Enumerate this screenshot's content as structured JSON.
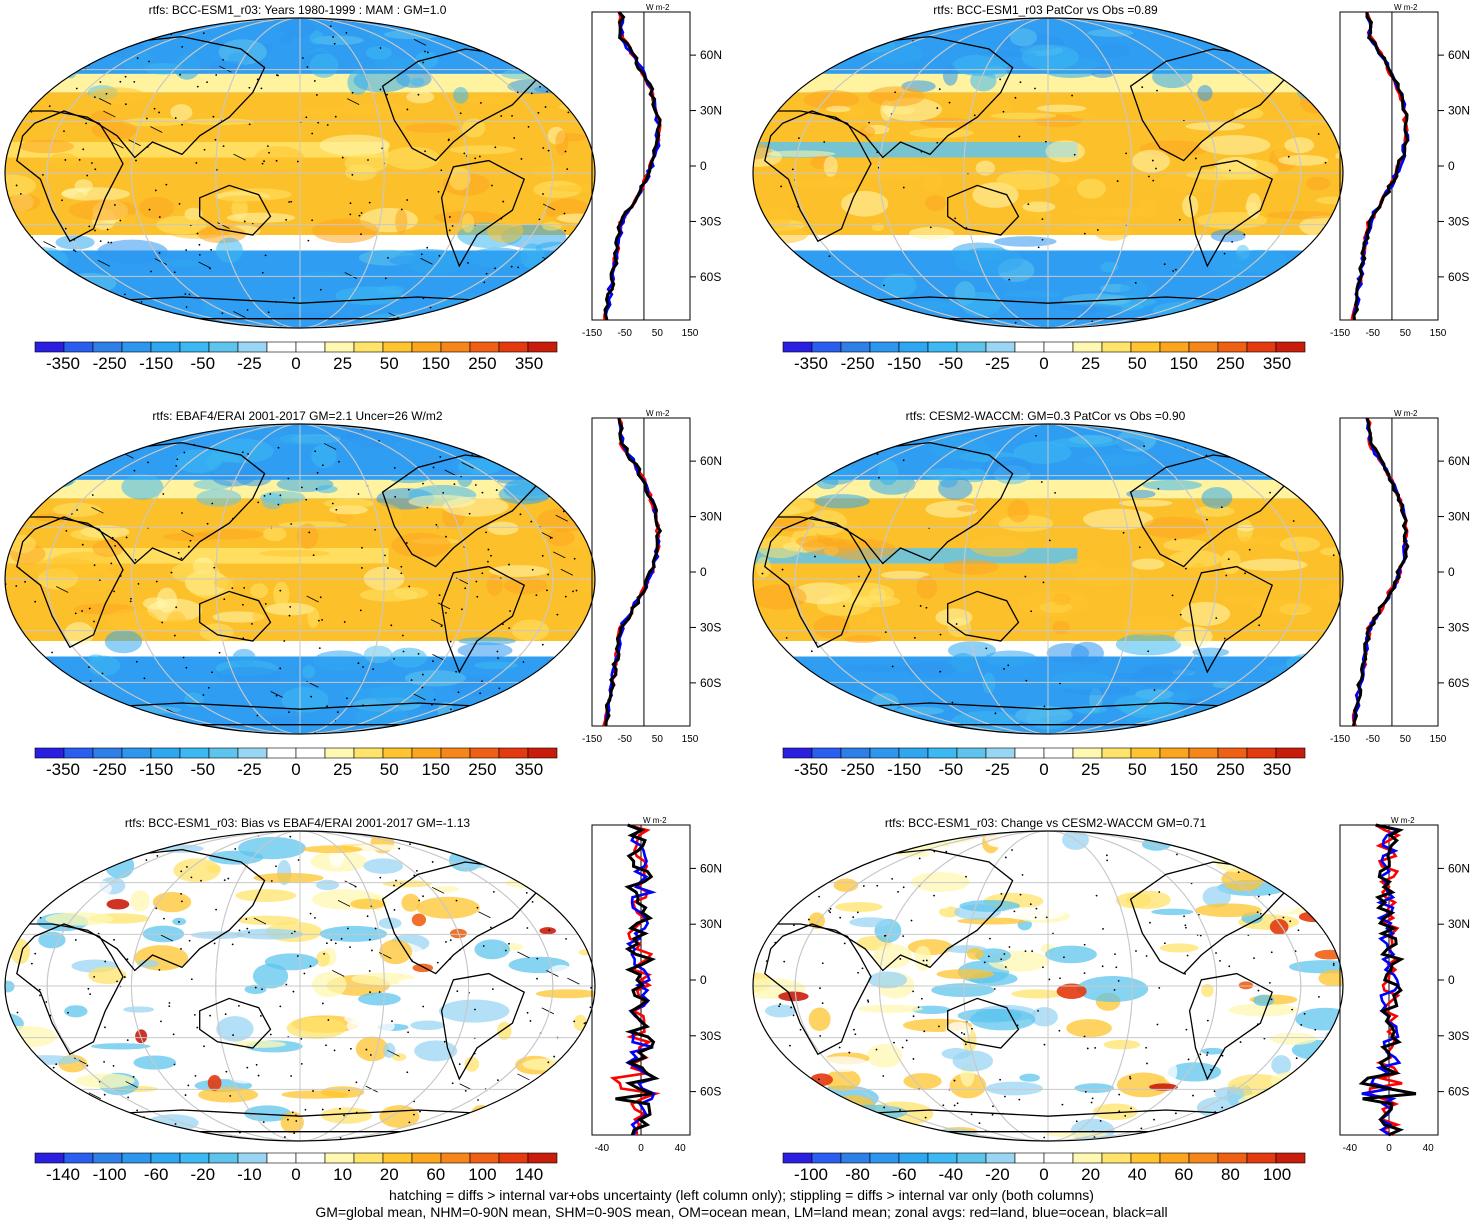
{
  "colors": {
    "scale": [
      "#2a1ee0",
      "#2a5ef0",
      "#2f7fe8",
      "#2e96ee",
      "#2fa7f0",
      "#3cb8f2",
      "#5ec4ee",
      "#9ad6f3",
      "#ffffff",
      "#ffffff",
      "#fff8b2",
      "#ffe36a",
      "#ffc42e",
      "#fca51f",
      "#f7861a",
      "#f06014",
      "#e33a10",
      "#c91d0c"
    ],
    "ocean_base": "#2f9ef2",
    "warm": "#fcc02a",
    "coast": "#000000",
    "grid": "#c8c8c8",
    "zonal_land": "#ff0000",
    "zonal_ocean": "#0000ff",
    "zonal_all": "#000000"
  },
  "panels": [
    {
      "id": "top-left",
      "title": "rtfs: BCC-ESM1_r03: Years 1980-1999 : MAM : GM=1.0",
      "colorbar_labels": [
        "-350",
        "-250",
        "-150",
        "-50",
        "-25",
        "0",
        "25",
        "50",
        "150",
        "250",
        "350"
      ],
      "zonal_ticks": [
        "-150",
        "-50",
        "50",
        "150"
      ],
      "lat_labels": [
        "60N",
        "30N",
        "0",
        "30S",
        "60S"
      ],
      "units": "W m-2"
    },
    {
      "id": "top-right",
      "title": "rtfs: BCC-ESM1_r03 PatCor vs Obs =0.89",
      "colorbar_labels": [
        "-350",
        "-250",
        "-150",
        "-50",
        "-25",
        "0",
        "25",
        "50",
        "150",
        "250",
        "350"
      ],
      "zonal_ticks": [
        "-150",
        "-50",
        "50",
        "150"
      ],
      "lat_labels": [
        "60N",
        "30N",
        "0",
        "30S",
        "60S"
      ],
      "units": "W m-2"
    },
    {
      "id": "mid-left",
      "title": "rtfs: EBAF4/ERAI 2001-2017 GM=2.1 Uncer=26 W/m2",
      "colorbar_labels": [
        "-350",
        "-250",
        "-150",
        "-50",
        "-25",
        "0",
        "25",
        "50",
        "150",
        "250",
        "350"
      ],
      "zonal_ticks": [
        "-150",
        "-50",
        "50",
        "150"
      ],
      "lat_labels": [
        "60N",
        "30N",
        "0",
        "30S",
        "60S"
      ],
      "units": "W m-2"
    },
    {
      "id": "mid-right",
      "title": "rtfs: CESM2-WACCM: GM=0.3 PatCor vs Obs =0.90",
      "colorbar_labels": [
        "-350",
        "-250",
        "-150",
        "-50",
        "-25",
        "0",
        "25",
        "50",
        "150",
        "250",
        "350"
      ],
      "zonal_ticks": [
        "-150",
        "-50",
        "50",
        "150"
      ],
      "lat_labels": [
        "60N",
        "30N",
        "0",
        "30S",
        "60S"
      ],
      "units": "W m-2"
    },
    {
      "id": "bottom-left",
      "title": "rtfs: BCC-ESM1_r03: Bias vs EBAF4/ERAI 2001-2017 GM=-1.13",
      "colorbar_labels": [
        "-140",
        "-100",
        "-60",
        "-20",
        "-10",
        "0",
        "10",
        "20",
        "60",
        "100",
        "140"
      ],
      "zonal_ticks": [
        "-40",
        "0",
        "40"
      ],
      "lat_labels": [
        "60N",
        "30N",
        "0",
        "30S",
        "60S"
      ],
      "units": "W m-2"
    },
    {
      "id": "bottom-right",
      "title": "rtfs: BCC-ESM1_r03: Change vs CESM2-WACCM GM=0.71",
      "colorbar_labels": [
        "-100",
        "-80",
        "-60",
        "-40",
        "-20",
        "0",
        "20",
        "40",
        "60",
        "80",
        "100"
      ],
      "zonal_ticks": [
        "-40",
        "0",
        "40"
      ],
      "lat_labels": [
        "60N",
        "30N",
        "0",
        "30S",
        "60S"
      ],
      "units": "W m-2"
    }
  ],
  "footer": {
    "line1": "hatching = diffs > internal var+obs uncertainty (left column only); stippling = diffs > internal var only (both columns)",
    "line2": "GM=global mean, NHM=0-90N mean, SHM=0-90S mean, OM=ocean mean, LM=land mean; zonal avgs: red=land, blue=ocean, black=all"
  }
}
